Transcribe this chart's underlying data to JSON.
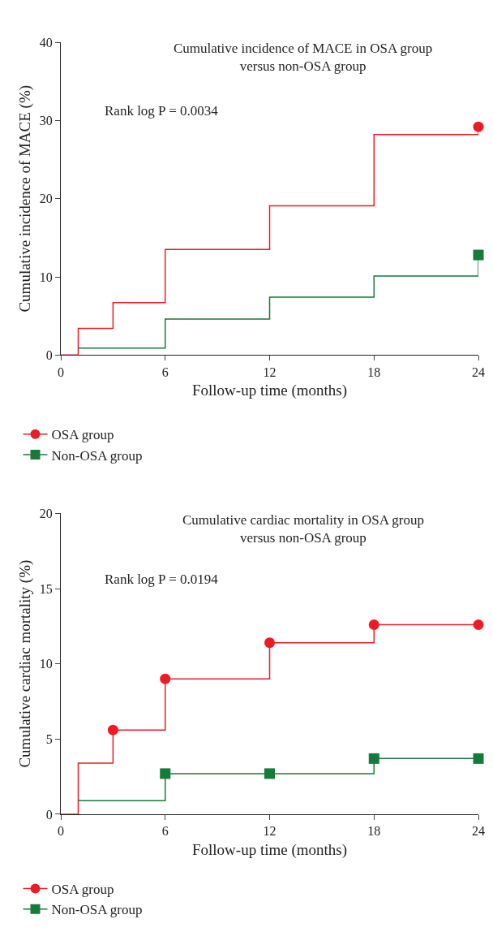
{
  "chart_data": [
    {
      "type": "step",
      "title": "Cumulative incidence of MACE in OSA group\nversus non-OSA group",
      "xlabel": "Follow-up time (months)",
      "ylabel": "Cumulative incidence of MACE (%)",
      "annotations": [
        "Rank log P = 0.0034"
      ],
      "xlim": [
        0,
        24
      ],
      "xticks": [
        0,
        6,
        12,
        18,
        24
      ],
      "ylim": [
        0,
        40
      ],
      "yticks": [
        0,
        10,
        20,
        30,
        40
      ],
      "legend": "bottom left",
      "series": [
        {
          "color": "#ed1c24",
          "x": [
            0,
            1,
            3,
            6,
            12,
            18,
            24
          ],
          "values": [
            0,
            3.4,
            6.7,
            13.5,
            19.1,
            28.2,
            29.2
          ]
        },
        {
          "color": "#157a3a",
          "x": [
            1,
            6,
            12,
            18,
            24
          ],
          "values": [
            0.9,
            4.6,
            7.4,
            10.1,
            12.8
          ]
        },
        {
          "type": "scatter",
          "name": "OSA group",
          "color": "#ed1c24",
          "marker": "circle",
          "x": [
            24
          ],
          "values": [
            29.2
          ]
        },
        {
          "type": "scatter",
          "name": "Non-OSA group",
          "color": "#157a3a",
          "marker": "square",
          "x": [
            24
          ],
          "values": [
            12.8
          ]
        }
      ]
    },
    {
      "type": "step",
      "title": "Cumulative cardiac mortality in OSA group\nversus non-OSA group",
      "xlabel": "Follow-up time (months)",
      "ylabel": "Cumulative cardiac mortality (%)",
      "annotations": [
        "Rank log P = 0.0194"
      ],
      "xlim": [
        0,
        24
      ],
      "xticks": [
        0,
        6,
        12,
        18,
        24
      ],
      "ylim": [
        0,
        20
      ],
      "yticks": [
        0,
        5,
        10,
        15,
        20
      ],
      "legend": "bottom left",
      "series": [
        {
          "color": "#ed1c24",
          "x": [
            0,
            1,
            3,
            6,
            12,
            18,
            24
          ],
          "values": [
            0,
            3.4,
            5.6,
            9.0,
            11.4,
            12.6,
            12.6
          ]
        },
        {
          "color": "#157a3a",
          "x": [
            1,
            6,
            12,
            18,
            24
          ],
          "values": [
            0.9,
            2.7,
            2.7,
            3.7,
            3.7
          ]
        },
        {
          "type": "scatter",
          "name": "OSA group",
          "color": "#ed1c24",
          "marker": "circle",
          "x": [
            3,
            6,
            12,
            18,
            24
          ],
          "values": [
            5.6,
            9.0,
            11.4,
            12.6,
            12.6
          ]
        },
        {
          "type": "scatter",
          "name": "Non-OSA group",
          "color": "#157a3a",
          "marker": "square",
          "x": [
            6,
            12,
            18,
            24
          ],
          "values": [
            2.7,
            2.7,
            3.7,
            3.7
          ]
        }
      ]
    }
  ]
}
